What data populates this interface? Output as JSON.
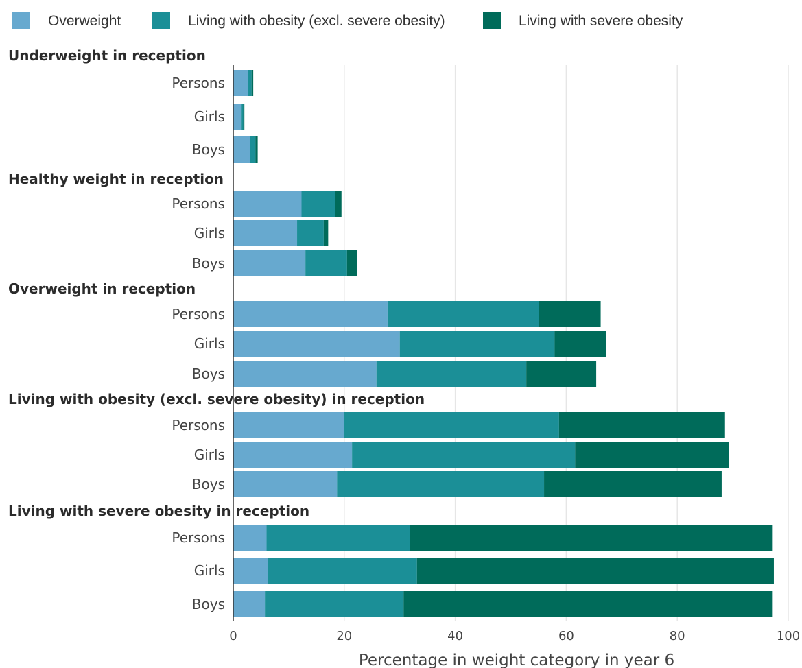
{
  "chart_data": {
    "type": "bar",
    "orientation": "horizontal",
    "stacked": true,
    "xlabel": "Percentage in weight category in year 6",
    "xlim": [
      0,
      100
    ],
    "xticks": [
      0,
      20,
      40,
      60,
      80,
      100
    ],
    "grid": true,
    "legend_position": "top",
    "series": [
      {
        "name": "Overweight",
        "color": "#67a9cf"
      },
      {
        "name": "Living with obesity (excl. severe obesity)",
        "color": "#1b8f97"
      },
      {
        "name": "Living with severe obesity",
        "color": "#006b5a"
      }
    ],
    "groups": [
      {
        "title": "Underweight in reception",
        "bars": [
          {
            "label": "Persons",
            "values": [
              2.6,
              0.7,
              0.3
            ]
          },
          {
            "label": "Girls",
            "values": [
              1.5,
              0.3,
              0.2
            ]
          },
          {
            "label": "Boys",
            "values": [
              3.0,
              1.0,
              0.4
            ]
          }
        ]
      },
      {
        "title": "Healthy weight in reception",
        "bars": [
          {
            "label": "Persons",
            "values": [
              12.3,
              6.0,
              1.2
            ]
          },
          {
            "label": "Girls",
            "values": [
              11.5,
              4.8,
              0.8
            ]
          },
          {
            "label": "Boys",
            "values": [
              13.0,
              7.5,
              1.8
            ]
          }
        ]
      },
      {
        "title": "Overweight in reception",
        "bars": [
          {
            "label": "Persons",
            "values": [
              27.8,
              27.3,
              11.1
            ]
          },
          {
            "label": "Girls",
            "values": [
              30.0,
              27.9,
              9.3
            ]
          },
          {
            "label": "Boys",
            "values": [
              25.8,
              27.0,
              12.6
            ]
          }
        ]
      },
      {
        "title": "Living with obesity (excl. severe obesity) in reception",
        "bars": [
          {
            "label": "Persons",
            "values": [
              20.0,
              38.7,
              29.9
            ]
          },
          {
            "label": "Girls",
            "values": [
              21.4,
              40.2,
              27.7
            ]
          },
          {
            "label": "Boys",
            "values": [
              18.7,
              37.3,
              32.0
            ]
          }
        ]
      },
      {
        "title": "Living with severe obesity in reception",
        "bars": [
          {
            "label": "Persons",
            "values": [
              6.0,
              25.8,
              65.4
            ]
          },
          {
            "label": "Girls",
            "values": [
              6.3,
              26.8,
              64.3
            ]
          },
          {
            "label": "Boys",
            "values": [
              5.7,
              25.0,
              66.5
            ]
          }
        ]
      }
    ]
  }
}
